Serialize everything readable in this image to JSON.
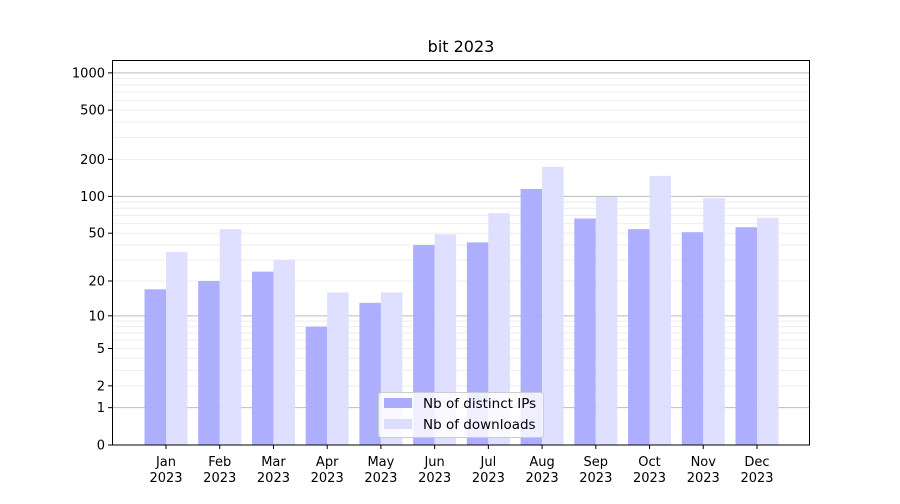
{
  "chart_data": {
    "type": "bar",
    "title": "bit 2023",
    "xlabel": "",
    "ylabel": "",
    "yscale": "log10(1+y)",
    "ylim": [
      0,
      1270
    ],
    "yticks": [
      0,
      1,
      2,
      5,
      10,
      20,
      50,
      100,
      200,
      500,
      1000
    ],
    "categories": [
      [
        "Jan",
        "2023"
      ],
      [
        "Feb",
        "2023"
      ],
      [
        "Mar",
        "2023"
      ],
      [
        "Apr",
        "2023"
      ],
      [
        "May",
        "2023"
      ],
      [
        "Jun",
        "2023"
      ],
      [
        "Jul",
        "2023"
      ],
      [
        "Aug",
        "2023"
      ],
      [
        "Sep",
        "2023"
      ],
      [
        "Oct",
        "2023"
      ],
      [
        "Nov",
        "2023"
      ],
      [
        "Dec",
        "2023"
      ]
    ],
    "series": [
      {
        "name": "Nb of distinct IPs",
        "color": "#aaaaff",
        "values": [
          17,
          20,
          24,
          8,
          13,
          40,
          42,
          115,
          66,
          54,
          51,
          56
        ]
      },
      {
        "name": "Nb of downloads",
        "color": "#ddddff",
        "values": [
          35,
          54,
          30,
          16,
          16,
          49,
          73,
          174,
          99,
          147,
          97,
          67
        ]
      }
    ],
    "grid": true,
    "legend": "bottom-center"
  }
}
